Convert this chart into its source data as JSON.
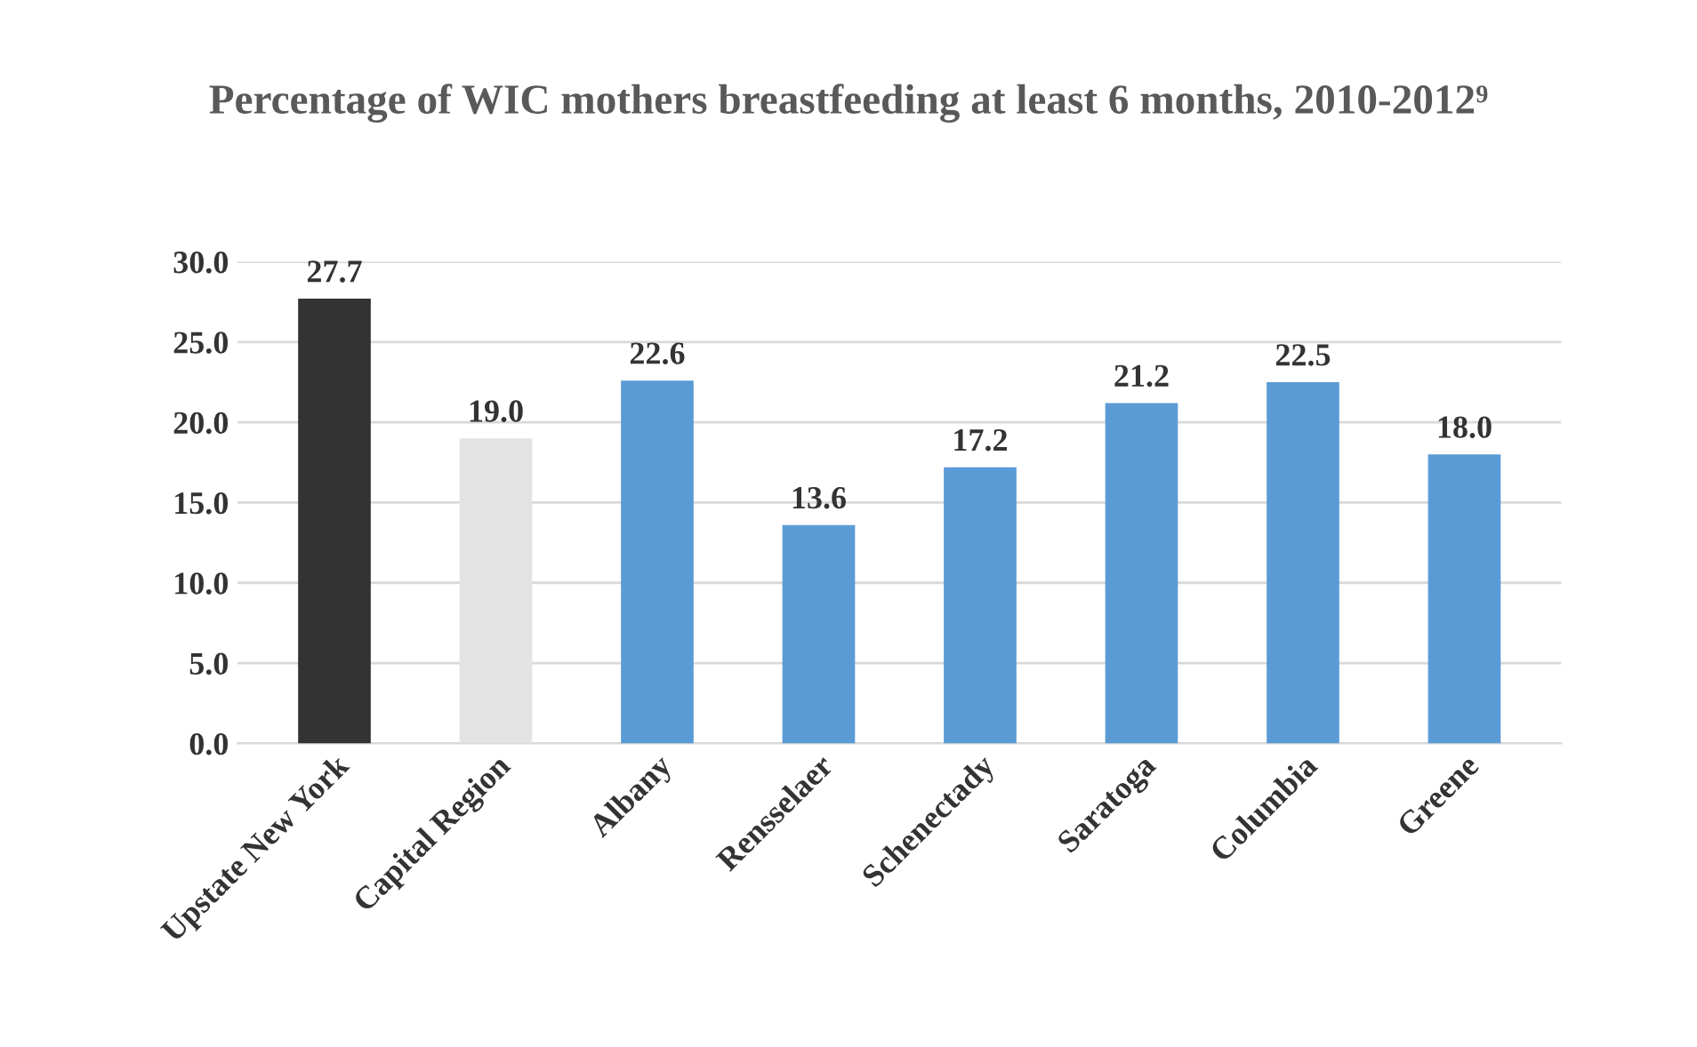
{
  "chart_data": {
    "type": "bar",
    "title": "Percentage of WIC mothers breastfeeding at least 6 months, 2010-2012⁹",
    "categories": [
      "Upstate New York",
      "Capital Region",
      "Albany",
      "Rensselaer",
      "Schenectady",
      "Saratoga",
      "Columbia",
      "Greene"
    ],
    "values": [
      27.7,
      19.0,
      22.6,
      13.6,
      17.2,
      21.2,
      22.5,
      18.0
    ],
    "colors": [
      "#333333",
      "#e3e3e3",
      "#5b9bd5",
      "#5b9bd5",
      "#5b9bd5",
      "#5b9bd5",
      "#5b9bd5",
      "#5b9bd5"
    ],
    "value_labels": [
      "27.7",
      "19.0",
      "22.6",
      "13.6",
      "17.2",
      "21.2",
      "22.5",
      "18.0"
    ],
    "ylim": [
      0,
      30
    ],
    "yticks": [
      {
        "value": 0,
        "label": "0.0"
      },
      {
        "value": 5,
        "label": "5.0"
      },
      {
        "value": 10,
        "label": "10.0"
      },
      {
        "value": 15,
        "label": "15.0"
      },
      {
        "value": 20,
        "label": "20.0"
      },
      {
        "value": 25,
        "label": "25.0"
      },
      {
        "value": 30,
        "label": "30.0"
      }
    ],
    "grid": "y"
  }
}
